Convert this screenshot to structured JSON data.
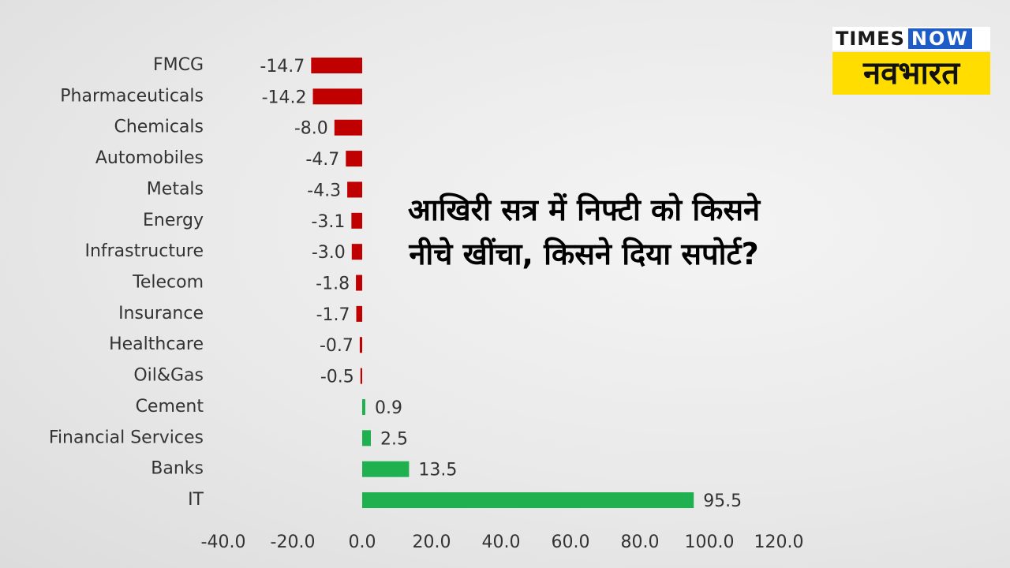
{
  "logo": {
    "times": "TIMES",
    "now": "NOW",
    "brand": "नवभारत"
  },
  "chart_data": {
    "type": "bar",
    "orientation": "horizontal",
    "title": "आखिरी सत्र में निफ्टी को किसने नीचे खींचा, किसने दिया सपोर्ट?",
    "categories": [
      "FMCG",
      "Pharmaceuticals",
      "Chemicals",
      "Automobiles",
      "Metals",
      "Energy",
      "Infrastructure",
      "Telecom",
      "Insurance",
      "Healthcare",
      "Oil&Gas",
      "Cement",
      "Financial Services",
      "Banks",
      "IT"
    ],
    "values": [
      -14.7,
      -14.2,
      -8.0,
      -4.7,
      -4.3,
      -3.1,
      -3.0,
      -1.8,
      -1.7,
      -0.7,
      -0.5,
      0.9,
      2.5,
      13.5,
      95.5
    ],
    "value_labels": [
      "-14.7",
      "-14.2",
      "-8.0",
      "-4.7",
      "-4.3",
      "-3.1",
      "-3.0",
      "-1.8",
      "-1.7",
      "-0.7",
      "-0.5",
      "0.9",
      "2.5",
      "13.5",
      "95.5"
    ],
    "negative_color": "#c00000",
    "positive_color": "#1fb04f",
    "xlim": [
      -40,
      120
    ],
    "xticks": [
      {
        "value": -40,
        "label": "-40.0"
      },
      {
        "value": -20,
        "label": "-20.0"
      },
      {
        "value": 0,
        "label": "0.0"
      },
      {
        "value": 20,
        "label": "20.0"
      },
      {
        "value": 40,
        "label": "40.0"
      },
      {
        "value": 60,
        "label": "60.0"
      },
      {
        "value": 80,
        "label": "80.0"
      },
      {
        "value": 100,
        "label": "100.0"
      },
      {
        "value": 120,
        "label": "120.0"
      }
    ],
    "grid": false
  }
}
